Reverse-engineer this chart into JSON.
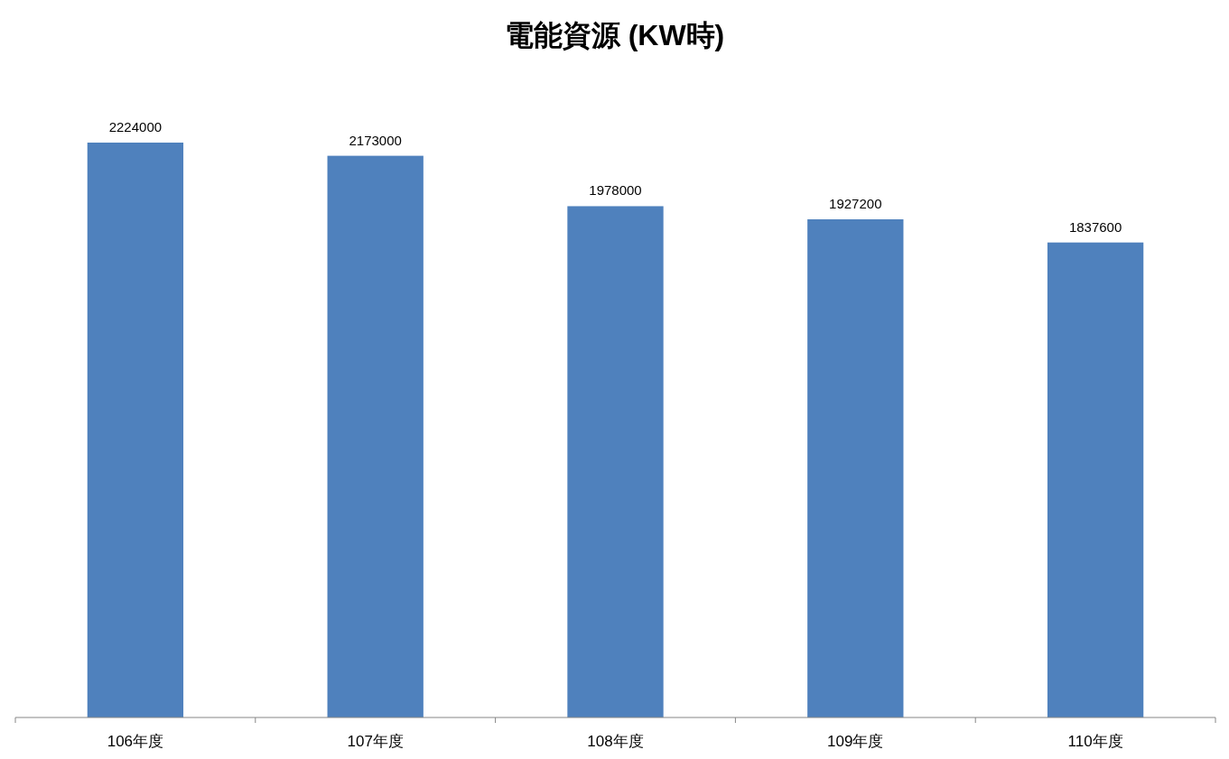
{
  "chart_data": {
    "type": "bar",
    "title": "電能資源 (KW時)",
    "categories": [
      "106年度",
      "107年度",
      "108年度",
      "109年度",
      "110年度"
    ],
    "values": [
      2224000,
      2173000,
      1978000,
      1927200,
      1837600
    ],
    "color": "#4f81bd",
    "data_labels": true
  }
}
